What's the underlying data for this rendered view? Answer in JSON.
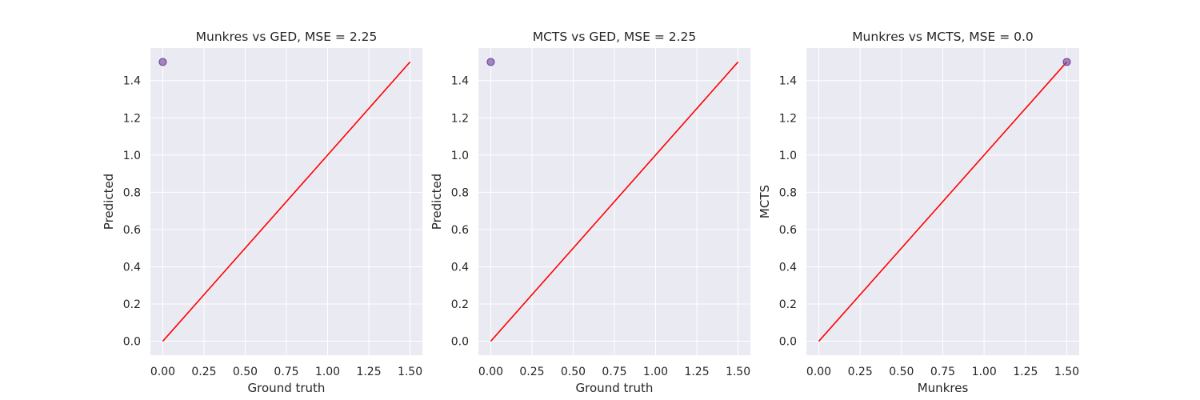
{
  "chart_data": [
    {
      "type": "scatter",
      "title": "Munkres vs GED, MSE = 2.25",
      "xlabel": "Ground truth",
      "ylabel": "Predicted",
      "xlim": [
        -0.075,
        1.575
      ],
      "ylim": [
        -0.075,
        1.575
      ],
      "xticks": [
        "0.00",
        "0.25",
        "0.50",
        "0.75",
        "1.00",
        "1.25",
        "1.50"
      ],
      "yticks": [
        "0.0",
        "0.2",
        "0.4",
        "0.6",
        "0.8",
        "1.0",
        "1.2",
        "1.4"
      ],
      "grid": true,
      "series": [
        {
          "type": "scatter",
          "x": [
            0.0
          ],
          "y": [
            1.5
          ],
          "color": "#6a3d9a"
        },
        {
          "type": "line",
          "x": [
            0.0,
            1.5
          ],
          "y": [
            0.0,
            1.5
          ],
          "color": "#ff0000"
        }
      ]
    },
    {
      "type": "scatter",
      "title": "MCTS vs GED, MSE = 2.25",
      "xlabel": "Ground truth",
      "ylabel": "Predicted",
      "xlim": [
        -0.075,
        1.575
      ],
      "ylim": [
        -0.075,
        1.575
      ],
      "xticks": [
        "0.00",
        "0.25",
        "0.50",
        "0.75",
        "1.00",
        "1.25",
        "1.50"
      ],
      "yticks": [
        "0.0",
        "0.2",
        "0.4",
        "0.6",
        "0.8",
        "1.0",
        "1.2",
        "1.4"
      ],
      "grid": true,
      "series": [
        {
          "type": "scatter",
          "x": [
            0.0
          ],
          "y": [
            1.5
          ],
          "color": "#6a3d9a"
        },
        {
          "type": "line",
          "x": [
            0.0,
            1.5
          ],
          "y": [
            0.0,
            1.5
          ],
          "color": "#ff0000"
        }
      ]
    },
    {
      "type": "scatter",
      "title": "Munkres vs MCTS, MSE = 0.0",
      "xlabel": "Munkres",
      "ylabel": "MCTS",
      "xlim": [
        -0.075,
        1.575
      ],
      "ylim": [
        -0.075,
        1.575
      ],
      "xticks": [
        "0.00",
        "0.25",
        "0.50",
        "0.75",
        "1.00",
        "1.25",
        "1.50"
      ],
      "yticks": [
        "0.0",
        "0.2",
        "0.4",
        "0.6",
        "0.8",
        "1.0",
        "1.2",
        "1.4"
      ],
      "grid": true,
      "series": [
        {
          "type": "scatter",
          "x": [
            1.5
          ],
          "y": [
            1.5
          ],
          "color": "#6a3d9a"
        },
        {
          "type": "line",
          "x": [
            0.0,
            1.5
          ],
          "y": [
            0.0,
            1.5
          ],
          "color": "#ff0000"
        }
      ]
    }
  ],
  "style": {
    "axes_background": "#eaeaf2",
    "grid_color": "#ffffff",
    "text_color": "#262626"
  }
}
